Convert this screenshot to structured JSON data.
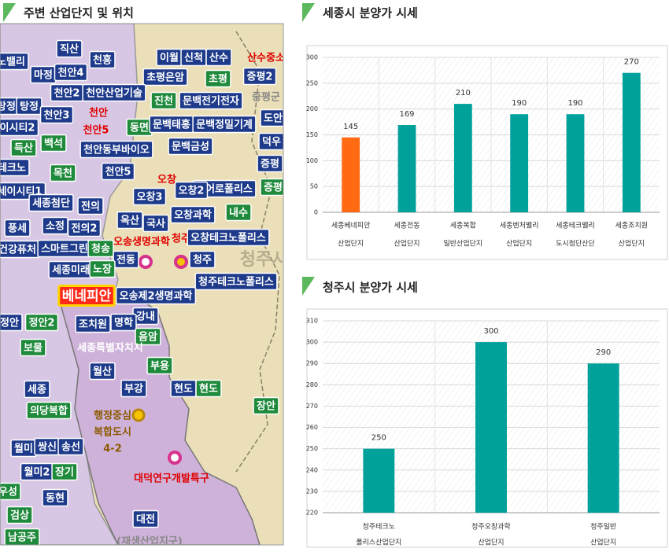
{
  "map": {
    "title": "주변 산업단지 및 위치",
    "labels": [
      "노밸리",
      "천흥",
      "이월",
      "신척",
      "산수",
      "산수중소",
      "직산",
      "마정",
      "천안4",
      "초평은암",
      "초평",
      "증평2",
      "천안2",
      "천안산업기술",
      "진천",
      "문백전기전자",
      "탕정",
      "탕정",
      "천안3",
      "천안",
      "도안",
      "이시티2",
      "천안5",
      "동면",
      "문백태홍",
      "문백정밀기계",
      "백석",
      "덕우",
      "득산",
      "천안동부바이오",
      "문백금성",
      "증평",
      "테크노",
      "목천",
      "천안5",
      "오창",
      "에어로폴리스",
      "증평",
      "세이시티1",
      "세종첨단",
      "전의",
      "오창3",
      "오창2",
      "풍세",
      "옥산",
      "국사",
      "오창과학",
      "내수",
      "소정",
      "전의2",
      "오송생명과학",
      "청주",
      "오창테크노폴리스",
      "건강퓨처",
      "스마트그린",
      "청송",
      "전동",
      "청주",
      "세종미래",
      "노장",
      "청주테크노폴리스",
      "베네피안",
      "오송제2생명과학",
      "강내",
      "정안",
      "정안2",
      "조치원",
      "명학",
      "음암",
      "세종특별자치시",
      "보물",
      "월산",
      "부용",
      "부강",
      "현도",
      "현도",
      "세종",
      "의당복합",
      "장안",
      "행정중심",
      "복합도시",
      "4-2",
      "월미",
      "쌍신",
      "송선",
      "대덕연구개발특구",
      "월미2",
      "장기",
      "우성",
      "동현",
      "대전",
      "검상",
      "남공주",
      "(재생산업지구)",
      "청주시",
      "증평군"
    ]
  },
  "chart_data": [
    {
      "type": "bar",
      "title": "세종시 분양가 시세",
      "categories": [
        [
          "세종베네피안",
          "산업단지"
        ],
        [
          "세종전동",
          "산업단지"
        ],
        [
          "세종복합",
          "일반산업단지"
        ],
        [
          "세종벤처밸리",
          "산업단지"
        ],
        [
          "세종테크밸리",
          "도시첨단산단"
        ],
        [
          "세종조치원",
          "산업단지"
        ]
      ],
      "values": [
        145,
        169,
        210,
        190,
        190,
        270
      ],
      "colors": [
        "#ff6a13",
        "#00a19a",
        "#00a19a",
        "#00a19a",
        "#00a19a",
        "#00a19a"
      ],
      "ylim": [
        0,
        300
      ],
      "yticks": [
        0,
        50,
        100,
        150,
        200,
        250,
        300
      ],
      "grid": true
    },
    {
      "type": "bar",
      "title": "청주시 분양가 시세",
      "categories": [
        [
          "청주테크노",
          "폴리스산업단지"
        ],
        [
          "청주오창과학",
          "산업단지"
        ],
        [
          "청주일반",
          "산업단지"
        ]
      ],
      "values": [
        250,
        300,
        290
      ],
      "colors": [
        "#00a19a",
        "#00a19a",
        "#00a19a"
      ],
      "ylim": [
        220,
        310
      ],
      "yticks": [
        220,
        230,
        240,
        250,
        260,
        270,
        280,
        290,
        300,
        310
      ],
      "grid": true
    }
  ]
}
